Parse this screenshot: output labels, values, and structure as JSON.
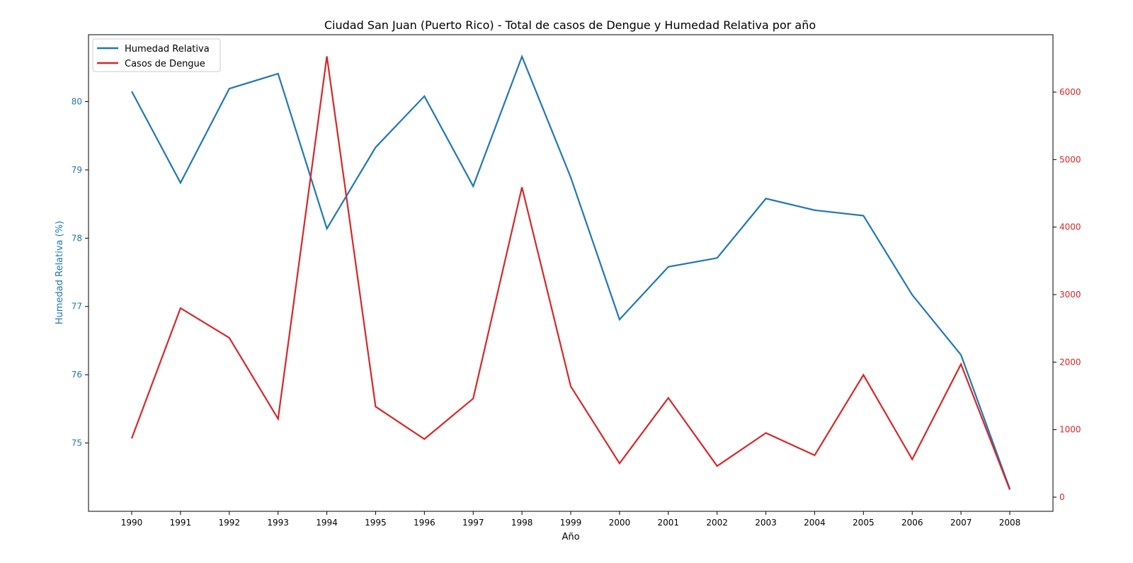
{
  "chart_data": {
    "type": "line",
    "title": "Ciudad San Juan (Puerto Rico) - Total de casos de Dengue y Humedad Relativa por año",
    "xlabel": "Año",
    "ylabel_left": "Humedad Relativa (%)",
    "ylabel_right": "",
    "x": [
      "1990",
      "1991",
      "1992",
      "1993",
      "1994",
      "1995",
      "1996",
      "1997",
      "1998",
      "1999",
      "2000",
      "2001",
      "2002",
      "2003",
      "2004",
      "2005",
      "2006",
      "2007",
      "2008"
    ],
    "y_left_ticks": [
      "75",
      "76",
      "77",
      "78",
      "79",
      "80"
    ],
    "y_right_ticks": [
      "0",
      "1000",
      "2000",
      "3000",
      "4000",
      "5000",
      "6000"
    ],
    "ylim_left": [
      74.0,
      80.98
    ],
    "ylim_right": [
      -210,
      6850
    ],
    "grid": false,
    "legend_position": "top-left",
    "colors": {
      "humidity": "#1f77b4",
      "dengue": "#d62728",
      "axis": "#000000"
    },
    "series": [
      {
        "name": "Humedad Relativa",
        "axis": "left",
        "values": [
          80.15,
          78.81,
          80.19,
          80.41,
          78.14,
          79.33,
          80.08,
          78.76,
          80.66,
          78.89,
          76.81,
          77.58,
          77.71,
          78.58,
          78.41,
          78.33,
          77.17,
          76.29,
          74.33
        ]
      },
      {
        "name": "Casos de Dengue",
        "axis": "right",
        "values": [
          870,
          2800,
          2360,
          1160,
          6530,
          1340,
          860,
          1460,
          4590,
          1640,
          500,
          1470,
          460,
          950,
          620,
          1810,
          560,
          1970,
          110
        ]
      }
    ]
  }
}
